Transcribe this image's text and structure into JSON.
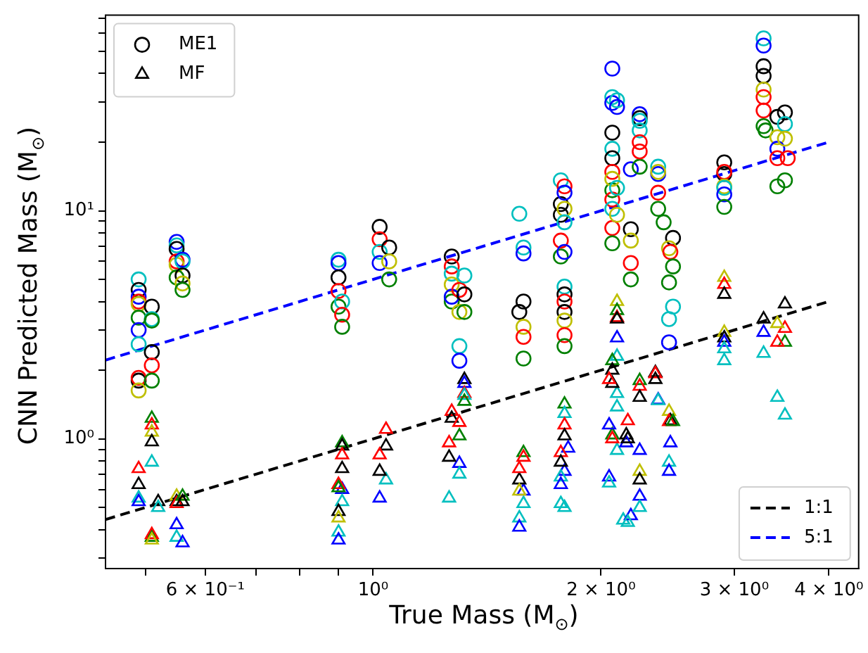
{
  "chart_data": {
    "type": "scatter",
    "xlabel": "True Mass (M$_{⊙}$)",
    "ylabel": "CNN Predicted Mass (M$_{⊙}$)",
    "log": "xy",
    "grid": false,
    "legend": "top left",
    "xlim": [
      0.443,
      4.38
    ],
    "ylim": [
      0.27,
      72
    ],
    "xticks": [
      {
        "value": 0.5,
        "label": null
      },
      {
        "value": 0.6,
        "label": "6 × 10⁻¹"
      },
      {
        "value": 0.7,
        "label": null
      },
      {
        "value": 0.8,
        "label": null
      },
      {
        "value": 0.9,
        "label": null
      },
      {
        "value": 1,
        "label": "10⁰"
      },
      {
        "value": 2,
        "label": "2 × 10⁰"
      },
      {
        "value": 3,
        "label": "3 × 10⁰"
      },
      {
        "value": 4,
        "label": "4 × 10⁰"
      }
    ],
    "yticks": [
      {
        "value": 0.3,
        "label": null
      },
      {
        "value": 0.4,
        "label": null
      },
      {
        "value": 0.5,
        "label": null
      },
      {
        "value": 0.6,
        "label": null
      },
      {
        "value": 0.7,
        "label": null
      },
      {
        "value": 0.8,
        "label": null
      },
      {
        "value": 0.9,
        "label": null
      },
      {
        "value": 1,
        "label": "10⁰"
      },
      {
        "value": 2,
        "label": null
      },
      {
        "value": 3,
        "label": null
      },
      {
        "value": 4,
        "label": null
      },
      {
        "value": 5,
        "label": null
      },
      {
        "value": 6,
        "label": null
      },
      {
        "value": 7,
        "label": null
      },
      {
        "value": 8,
        "label": null
      },
      {
        "value": 9,
        "label": null
      },
      {
        "value": 10,
        "label": "10¹"
      },
      {
        "value": 20,
        "label": null
      },
      {
        "value": 30,
        "label": null
      },
      {
        "value": 40,
        "label": null
      },
      {
        "value": 50,
        "label": null
      },
      {
        "value": 60,
        "label": null
      },
      {
        "value": 70,
        "label": null
      }
    ],
    "series": [
      {
        "name": "ME1",
        "marker": "circle",
        "color": "#000000",
        "x": [
          0.49,
          0.49,
          0.49,
          0.49,
          0.49,
          0.49,
          0.49,
          0.49,
          0.49,
          0.49,
          0.49,
          0.51,
          0.51,
          0.51,
          0.51,
          0.51,
          0.51,
          0.55,
          0.55,
          0.55,
          0.55,
          0.55,
          0.55,
          0.56,
          0.56,
          0.56,
          0.56,
          0.56,
          0.9,
          0.9,
          0.9,
          0.9,
          0.9,
          0.91,
          0.91,
          0.91,
          1.02,
          1.02,
          1.02,
          1.02,
          1.05,
          1.05,
          1.05,
          1.27,
          1.27,
          1.27,
          1.27,
          1.27,
          1.27,
          1.3,
          1.3,
          1.3,
          1.3,
          1.32,
          1.32,
          1.32,
          1.56,
          1.56,
          1.58,
          1.58,
          1.58,
          1.58,
          1.58,
          1.58,
          1.77,
          1.77,
          1.77,
          1.77,
          1.77,
          1.79,
          1.79,
          1.79,
          1.79,
          1.79,
          1.79,
          1.79,
          1.79,
          1.79,
          1.79,
          1.79,
          1.79,
          2.07,
          2.07,
          2.07,
          2.07,
          2.07,
          2.07,
          2.07,
          2.07,
          2.07,
          2.07,
          2.07,
          2.07,
          2.07,
          2.1,
          2.1,
          2.1,
          2.1,
          2.19,
          2.19,
          2.19,
          2.19,
          2.19,
          2.25,
          2.25,
          2.25,
          2.25,
          2.25,
          2.25,
          2.25,
          2.38,
          2.38,
          2.38,
          2.38,
          2.38,
          2.42,
          2.49,
          2.46,
          2.47,
          2.49,
          2.46,
          2.49,
          2.46,
          2.46,
          2.91,
          2.91,
          2.91,
          2.91,
          2.91,
          2.91,
          2.91,
          3.28,
          3.28,
          3.28,
          3.28,
          3.28,
          3.28,
          3.28,
          3.28,
          3.3,
          3.42,
          3.42,
          3.42,
          3.42,
          3.42,
          3.5,
          3.5,
          3.5,
          3.5,
          3.53
        ],
        "values": [
          5.0,
          4.5,
          4.2,
          4.0,
          3.9,
          3.4,
          3.0,
          2.6,
          1.8,
          1.85,
          1.63,
          3.8,
          3.35,
          3.3,
          2.4,
          2.1,
          1.8,
          7.3,
          7.05,
          6.8,
          6.0,
          5.8,
          5.1,
          6.1,
          6.0,
          5.2,
          4.8,
          4.5,
          6.1,
          5.9,
          5.1,
          4.45,
          3.8,
          4.0,
          3.5,
          3.1,
          8.5,
          7.5,
          6.6,
          5.9,
          6.9,
          6.0,
          5.0,
          6.3,
          5.7,
          5.3,
          4.75,
          4.0,
          4.2,
          4.5,
          3.6,
          2.55,
          2.2,
          5.2,
          4.3,
          3.6,
          9.7,
          3.6,
          6.9,
          6.5,
          4.0,
          3.1,
          2.8,
          2.25,
          13.6,
          10.7,
          9.6,
          7.4,
          6.3,
          12.8,
          12.0,
          10.2,
          8.9,
          6.6,
          4.65,
          4.3,
          4.0,
          3.6,
          3.3,
          2.85,
          2.55,
          42,
          31.5,
          29.7,
          22,
          18.7,
          17,
          14.8,
          12.3,
          13.8,
          11.2,
          10.2,
          8.4,
          7.2,
          30.5,
          28.5,
          12.6,
          9.6,
          8.3,
          7.4,
          5.9,
          5.0,
          15.2,
          15.6,
          26.5,
          25.5,
          24.8,
          22.5,
          20,
          18.2,
          15.6,
          14.5,
          14.8,
          12.0,
          10.2,
          8.9,
          7.6,
          6.85,
          6.6,
          5.7,
          4.85,
          3.8,
          3.35,
          2.65,
          16.3,
          14.5,
          14.8,
          12.8,
          12.6,
          11.8,
          10.4,
          57,
          53,
          43,
          39,
          34,
          31.5,
          27.5,
          23.5,
          22.5,
          25.8,
          21,
          18.7,
          17,
          12.8,
          27,
          24,
          20.7,
          13.6,
          17
        ],
        "colors": [
          "#00bfbf",
          "#000000",
          "#0000ff",
          "#ff0000",
          "#bfbf00",
          "#008000",
          "#0000ff",
          "#00bfbf",
          "#000000",
          "#ff0000",
          "#bfbf00",
          "#000000",
          "#00bfbf",
          "#008000",
          "#000000",
          "#ff0000",
          "#008000",
          "#0000ff",
          "#00bfbf",
          "#000000",
          "#ff0000",
          "#bfbf00",
          "#008000",
          "#0000ff",
          "#00bfbf",
          "#000000",
          "#bfbf00",
          "#008000",
          "#00bfbf",
          "#0000ff",
          "#000000",
          "#ff0000",
          "#008000",
          "#00bfbf",
          "#ff0000",
          "#008000",
          "#000000",
          "#ff0000",
          "#00bfbf",
          "#0000ff",
          "#000000",
          "#bfbf00",
          "#008000",
          "#000000",
          "#ff0000",
          "#00bfbf",
          "#bfbf00",
          "#008000",
          "#0000ff",
          "#ff0000",
          "#bfbf00",
          "#00bfbf",
          "#0000ff",
          "#00bfbf",
          "#000000",
          "#008000",
          "#00bfbf",
          "#000000",
          "#00bfbf",
          "#0000ff",
          "#000000",
          "#bfbf00",
          "#ff0000",
          "#008000",
          "#00bfbf",
          "#000000",
          "#000000",
          "#ff0000",
          "#008000",
          "#ff0000",
          "#0000ff",
          "#bfbf00",
          "#00bfbf",
          "#0000ff",
          "#00bfbf",
          "#000000",
          "#ff0000",
          "#000000",
          "#bfbf00",
          "#ff0000",
          "#008000",
          "#0000ff",
          "#00bfbf",
          "#0000ff",
          "#000000",
          "#00bfbf",
          "#000000",
          "#ff0000",
          "#008000",
          "#bfbf00",
          "#ff0000",
          "#00bfbf",
          "#ff0000",
          "#008000",
          "#00bfbf",
          "#0000ff",
          "#00bfbf",
          "#bfbf00",
          "#000000",
          "#bfbf00",
          "#ff0000",
          "#008000",
          "#0000ff",
          "#008000",
          "#0000ff",
          "#000000",
          "#00bfbf",
          "#00bfbf",
          "#ff0000",
          "#ff0000",
          "#00bfbf",
          "#0000ff",
          "#bfbf00",
          "#ff0000",
          "#008000",
          "#008000",
          "#000000",
          "#bfbf00",
          "#ff0000",
          "#008000",
          "#008000",
          "#00bfbf",
          "#00bfbf",
          "#0000ff",
          "#000000",
          "#000000",
          "#ff0000",
          "#bfbf00",
          "#00bfbf",
          "#0000ff",
          "#008000",
          "#00bfbf",
          "#0000ff",
          "#000000",
          "#000000",
          "#bfbf00",
          "#ff0000",
          "#ff0000",
          "#008000",
          "#008000",
          "#000000",
          "#bfbf00",
          "#0000ff",
          "#ff0000",
          "#008000",
          "#000000",
          "#00bfbf",
          "#bfbf00",
          "#008000",
          "#ff0000"
        ]
      },
      {
        "name": "MF",
        "marker": "triangle",
        "color": "#000000",
        "x": [
          0.51,
          0.51,
          0.51,
          0.51,
          0.51,
          0.49,
          0.49,
          0.49,
          0.49,
          0.52,
          0.52,
          0.51,
          0.51,
          0.51,
          0.55,
          0.55,
          0.55,
          0.55,
          0.55,
          0.56,
          0.56,
          0.56,
          0.91,
          0.91,
          0.91,
          0.91,
          0.91,
          0.91,
          0.9,
          0.9,
          0.9,
          0.9,
          0.9,
          0.9,
          1.04,
          1.04,
          1.04,
          1.02,
          1.02,
          1.02,
          1.32,
          1.32,
          1.32,
          1.32,
          1.32,
          1.27,
          1.27,
          1.3,
          1.3,
          1.3,
          1.3,
          1.26,
          1.26,
          1.26,
          1.58,
          1.58,
          1.58,
          1.58,
          1.56,
          1.56,
          1.56,
          1.56,
          1.56,
          1.79,
          1.79,
          1.79,
          1.79,
          1.79,
          1.79,
          1.81,
          1.77,
          1.77,
          1.77,
          1.77,
          1.77,
          2.1,
          2.1,
          2.1,
          2.1,
          2.1,
          2.1,
          2.1,
          2.1,
          2.1,
          2.07,
          2.07,
          2.07,
          2.07,
          2.07,
          2.05,
          2.05,
          2.05,
          2.05,
          2.16,
          2.16,
          2.14,
          2.19,
          2.17,
          2.17,
          2.17,
          2.25,
          2.25,
          2.25,
          2.25,
          2.25,
          2.25,
          2.25,
          2.25,
          2.36,
          2.36,
          2.36,
          2.38,
          2.38,
          2.46,
          2.46,
          2.46,
          2.47,
          2.47,
          2.46,
          2.49,
          2.91,
          2.91,
          2.91,
          2.91,
          2.91,
          2.91,
          2.91,
          2.91,
          3.5,
          3.5,
          3.5,
          3.5,
          3.28,
          3.28,
          3.28,
          3.42,
          3.42,
          3.42
        ],
        "values": [
          1.23,
          1.15,
          1.07,
          0.97,
          0.79,
          0.74,
          0.63,
          0.55,
          0.53,
          0.53,
          0.5,
          0.37,
          0.38,
          0.36,
          0.56,
          0.53,
          0.52,
          0.42,
          0.37,
          0.56,
          0.53,
          0.35,
          0.96,
          0.93,
          0.85,
          0.74,
          0.6,
          0.53,
          0.63,
          0.61,
          0.48,
          0.45,
          0.39,
          0.36,
          1.1,
          0.93,
          0.66,
          0.85,
          0.72,
          0.55,
          1.82,
          1.75,
          1.58,
          1.55,
          1.46,
          1.32,
          1.23,
          1.18,
          1.03,
          0.78,
          0.7,
          0.96,
          0.83,
          0.55,
          0.87,
          0.83,
          0.59,
          0.52,
          0.66,
          0.59,
          0.74,
          0.45,
          0.41,
          1.42,
          1.29,
          1.15,
          1.03,
          0.72,
          0.5,
          0.91,
          0.87,
          0.79,
          0.68,
          0.63,
          0.52,
          4.0,
          3.65,
          3.4,
          3.35,
          2.77,
          2.3,
          1.58,
          1.38,
          0.89,
          2.2,
          2.0,
          1.75,
          1.04,
          1.0,
          1.82,
          1.15,
          0.68,
          0.64,
          1.04,
          0.96,
          0.44,
          0.46,
          0.43,
          1.2,
          1.0,
          1.8,
          1.7,
          1.52,
          0.89,
          0.72,
          0.66,
          0.56,
          0.5,
          1.95,
          1.93,
          1.82,
          1.48,
          1.47,
          1.32,
          0.79,
          0.72,
          1.2,
          0.96,
          1.19,
          1.19,
          5.1,
          4.75,
          4.3,
          2.93,
          2.77,
          2.65,
          2.48,
          2.2,
          3.9,
          3.05,
          2.65,
          1.27,
          3.35,
          2.93,
          2.37,
          3.2,
          2.65,
          1.52
        ],
        "colors": [
          "#008000",
          "#ff0000",
          "#bfbf00",
          "#000000",
          "#00bfbf",
          "#ff0000",
          "#000000",
          "#00bfbf",
          "#0000ff",
          "#000000",
          "#00bfbf",
          "#008000",
          "#ff0000",
          "#bfbf00",
          "#bfbf00",
          "#000000",
          "#ff0000",
          "#0000ff",
          "#00bfbf",
          "#008000",
          "#000000",
          "#0000ff",
          "#008000",
          "#000000",
          "#ff0000",
          "#000000",
          "#0000ff",
          "#00bfbf",
          "#ff0000",
          "#008000",
          "#000000",
          "#bfbf00",
          "#00bfbf",
          "#0000ff",
          "#ff0000",
          "#000000",
          "#00bfbf",
          "#ff0000",
          "#000000",
          "#0000ff",
          "#000000",
          "#0000ff",
          "#ff0000",
          "#00bfbf",
          "#008000",
          "#ff0000",
          "#000000",
          "#ff0000",
          "#008000",
          "#0000ff",
          "#00bfbf",
          "#ff0000",
          "#000000",
          "#00bfbf",
          "#008000",
          "#ff0000",
          "#0000ff",
          "#00bfbf",
          "#000000",
          "#bfbf00",
          "#ff0000",
          "#00bfbf",
          "#0000ff",
          "#008000",
          "#00bfbf",
          "#ff0000",
          "#000000",
          "#0000ff",
          "#00bfbf",
          "#0000ff",
          "#ff0000",
          "#000000",
          "#00bfbf",
          "#0000ff",
          "#00bfbf",
          "#bfbf00",
          "#008000",
          "#ff0000",
          "#000000",
          "#0000ff",
          "#00bfbf",
          "#00bfbf",
          "#00bfbf",
          "#00bfbf",
          "#008000",
          "#000000",
          "#000000",
          "#008000",
          "#ff0000",
          "#ff0000",
          "#0000ff",
          "#0000ff",
          "#00bfbf",
          "#000000",
          "#0000ff",
          "#00bfbf",
          "#0000ff",
          "#00bfbf",
          "#ff0000",
          "#000000",
          "#008000",
          "#ff0000",
          "#000000",
          "#0000ff",
          "#bfbf00",
          "#000000",
          "#0000ff",
          "#00bfbf",
          "#000000",
          "#ff0000",
          "#000000",
          "#0000ff",
          "#00bfbf",
          "#bfbf00",
          "#00bfbf",
          "#0000ff",
          "#000000",
          "#0000ff",
          "#ff0000",
          "#008000",
          "#bfbf00",
          "#ff0000",
          "#000000",
          "#bfbf00",
          "#000000",
          "#0000ff",
          "#00bfbf",
          "#00bfbf",
          "#000000",
          "#ff0000",
          "#008000",
          "#00bfbf",
          "#000000",
          "#0000ff",
          "#00bfbf",
          "#bfbf00",
          "#ff0000",
          "#00bfbf"
        ]
      },
      {
        "name": "1:1",
        "type": "line",
        "color": "#000000",
        "line_style": "dashed",
        "x": [
          0.443,
          4
        ],
        "values": [
          0.443,
          4
        ]
      },
      {
        "name": "5:1",
        "type": "line",
        "color": "#0000ff",
        "line_style": "dashed",
        "x": [
          0.443,
          4
        ],
        "values": [
          2.215,
          20
        ]
      }
    ]
  }
}
